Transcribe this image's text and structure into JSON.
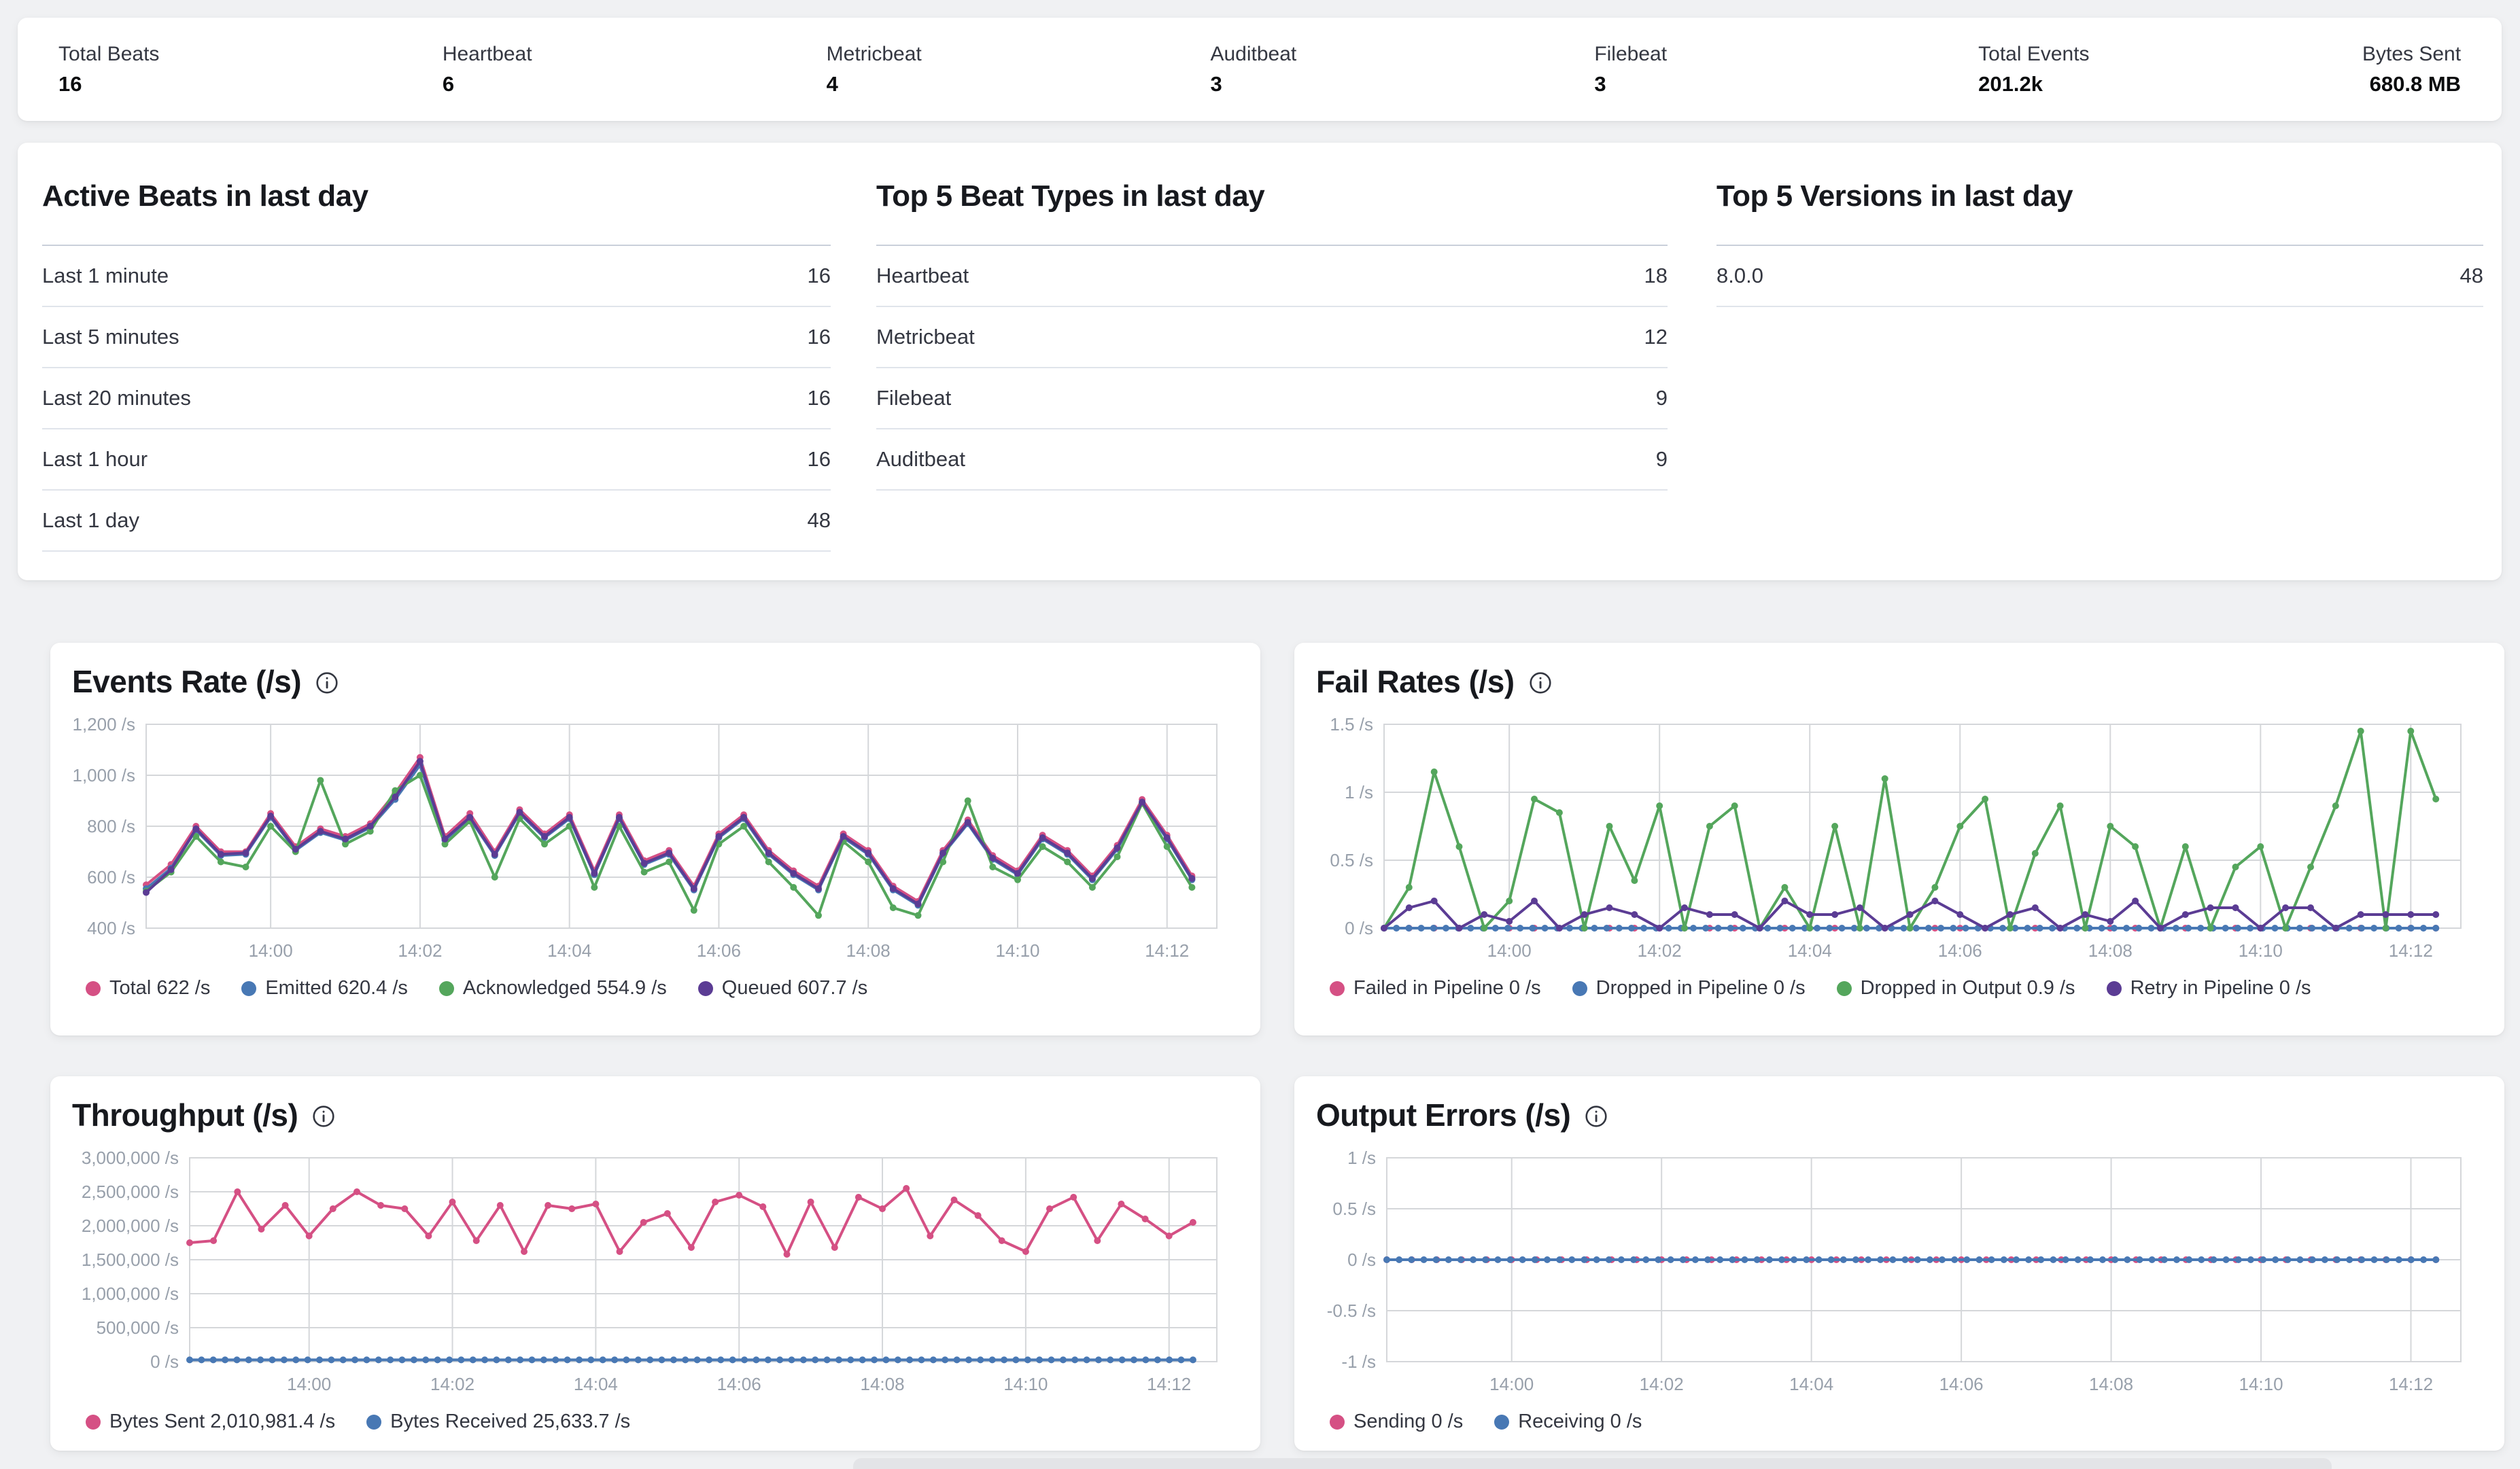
{
  "stats": [
    {
      "label": "Total Beats",
      "value": "16"
    },
    {
      "label": "Heartbeat",
      "value": "6"
    },
    {
      "label": "Metricbeat",
      "value": "4"
    },
    {
      "label": "Auditbeat",
      "value": "3"
    },
    {
      "label": "Filebeat",
      "value": "3"
    },
    {
      "label": "Total Events",
      "value": "201.2k"
    },
    {
      "label": "Bytes Sent",
      "value": "680.8 MB"
    }
  ],
  "tables": [
    {
      "title": "Active Beats in last day",
      "rows": [
        [
          "Last 1 minute",
          "16"
        ],
        [
          "Last 5 minutes",
          "16"
        ],
        [
          "Last 20 minutes",
          "16"
        ],
        [
          "Last 1 hour",
          "16"
        ],
        [
          "Last 1 day",
          "48"
        ]
      ]
    },
    {
      "title": "Top 5 Beat Types in last day",
      "rows": [
        [
          "Heartbeat",
          "18"
        ],
        [
          "Metricbeat",
          "12"
        ],
        [
          "Filebeat",
          "9"
        ],
        [
          "Auditbeat",
          "9"
        ]
      ]
    },
    {
      "title": "Top 5 Versions in last day",
      "rows": [
        [
          "8.0.0",
          "48"
        ]
      ]
    }
  ],
  "colors": {
    "pink": "#D55084",
    "blue": "#4878B4",
    "green": "#54A65C",
    "purple": "#5B3C94",
    "grid": "#D5D7DA",
    "tick_text": "#98A0AB",
    "page_bg": "#F0F1F3",
    "card_bg": "#FFFFFF"
  },
  "charts": [
    {
      "id": "events_rate",
      "title": "Events Rate (/s)",
      "type": "line",
      "ylim": [
        400,
        1200
      ],
      "yticks": [
        {
          "v": 1200,
          "label": "1,200 /s"
        },
        {
          "v": 1000,
          "label": "1,000 /s"
        },
        {
          "v": 800,
          "label": "800 /s"
        },
        {
          "v": 600,
          "label": "600 /s"
        },
        {
          "v": 400,
          "label": "400 /s"
        }
      ],
      "x_domain_s": 860,
      "xticks": [
        {
          "t": 100,
          "label": "14:00"
        },
        {
          "t": 220,
          "label": "14:02"
        },
        {
          "t": 340,
          "label": "14:04"
        },
        {
          "t": 460,
          "label": "14:06"
        },
        {
          "t": 580,
          "label": "14:08"
        },
        {
          "t": 700,
          "label": "14:10"
        },
        {
          "t": 820,
          "label": "14:12"
        }
      ],
      "series": [
        {
          "name": "Total",
          "color": "#D55084",
          "legend": "Total 622 /s",
          "values": [
            570,
            650,
            800,
            700,
            700,
            850,
            720,
            790,
            760,
            810,
            930,
            1070,
            760,
            850,
            700,
            865,
            770,
            845,
            625,
            845,
            665,
            705,
            565,
            770,
            845,
            705,
            625,
            565,
            770,
            705,
            565,
            505,
            705,
            825,
            685,
            625,
            765,
            705,
            605,
            725,
            905,
            765,
            605
          ]
        },
        {
          "name": "Emitted",
          "color": "#4878B4",
          "legend": "Emitted 620.4 /s",
          "values": [
            555,
            635,
            785,
            685,
            690,
            835,
            705,
            775,
            745,
            795,
            905,
            1040,
            745,
            830,
            685,
            850,
            755,
            830,
            610,
            830,
            650,
            690,
            550,
            755,
            830,
            690,
            610,
            550,
            755,
            690,
            550,
            490,
            690,
            810,
            670,
            610,
            750,
            690,
            590,
            710,
            890,
            750,
            590
          ]
        },
        {
          "name": "Acknowledged",
          "color": "#54A65C",
          "legend": "Acknowledged 554.9 /s",
          "values": [
            545,
            620,
            760,
            660,
            640,
            800,
            700,
            980,
            730,
            780,
            940,
            1000,
            730,
            820,
            600,
            830,
            730,
            800,
            560,
            800,
            620,
            660,
            470,
            730,
            800,
            660,
            560,
            450,
            740,
            660,
            480,
            450,
            660,
            900,
            640,
            590,
            720,
            660,
            560,
            680,
            890,
            720,
            560
          ]
        },
        {
          "name": "Queued",
          "color": "#5B3C94",
          "legend": "Queued 607.7 /s",
          "values": [
            540,
            630,
            790,
            690,
            695,
            840,
            710,
            780,
            750,
            800,
            915,
            1055,
            750,
            835,
            690,
            855,
            760,
            835,
            615,
            835,
            655,
            695,
            555,
            760,
            835,
            695,
            615,
            555,
            760,
            695,
            555,
            495,
            695,
            815,
            675,
            615,
            755,
            695,
            595,
            715,
            895,
            755,
            595
          ]
        }
      ]
    },
    {
      "id": "fail_rates",
      "title": "Fail Rates (/s)",
      "type": "line",
      "ylim": [
        0,
        1.5
      ],
      "yticks": [
        {
          "v": 1.5,
          "label": "1.5 /s"
        },
        {
          "v": 1,
          "label": "1 /s"
        },
        {
          "v": 0.5,
          "label": "0.5 /s"
        },
        {
          "v": 0,
          "label": "0 /s"
        }
      ],
      "x_domain_s": 860,
      "xticks": [
        {
          "t": 100,
          "label": "14:00"
        },
        {
          "t": 220,
          "label": "14:02"
        },
        {
          "t": 340,
          "label": "14:04"
        },
        {
          "t": 460,
          "label": "14:06"
        },
        {
          "t": 580,
          "label": "14:08"
        },
        {
          "t": 700,
          "label": "14:10"
        },
        {
          "t": 820,
          "label": "14:12"
        }
      ],
      "series": [
        {
          "name": "Failed in Pipeline",
          "color": "#D55084",
          "legend": "Failed in Pipeline 0 /s",
          "values": [
            0,
            0,
            0,
            0,
            0,
            0,
            0,
            0,
            0,
            0,
            0,
            0,
            0,
            0,
            0,
            0,
            0,
            0,
            0,
            0,
            0,
            0,
            0,
            0,
            0,
            0,
            0,
            0,
            0,
            0,
            0,
            0,
            0,
            0,
            0,
            0,
            0,
            0,
            0,
            0,
            0,
            0,
            0
          ]
        },
        {
          "name": "Dropped in Pipeline",
          "color": "#4878B4",
          "legend": "Dropped in Pipeline 0 /s",
          "values": [
            0,
            0,
            0,
            0,
            0,
            0,
            0,
            0,
            0,
            0,
            0,
            0,
            0,
            0,
            0,
            0,
            0,
            0,
            0,
            0,
            0,
            0,
            0,
            0,
            0,
            0,
            0,
            0,
            0,
            0,
            0,
            0,
            0,
            0,
            0,
            0,
            0,
            0,
            0,
            0,
            0,
            0,
            0,
            0,
            0,
            0,
            0,
            0,
            0,
            0,
            0,
            0,
            0,
            0,
            0,
            0,
            0,
            0,
            0,
            0,
            0,
            0,
            0,
            0,
            0,
            0,
            0,
            0,
            0,
            0,
            0,
            0,
            0,
            0,
            0,
            0,
            0,
            0,
            0,
            0,
            0,
            0,
            0,
            0,
            0,
            0
          ]
        },
        {
          "name": "Dropped in Output",
          "color": "#54A65C",
          "legend": "Dropped in Output 0.9 /s",
          "values": [
            0,
            0.3,
            1.15,
            0.6,
            0,
            0.2,
            0.95,
            0.85,
            0,
            0.75,
            0.35,
            0.9,
            0,
            0.75,
            0.9,
            0,
            0.3,
            0,
            0.75,
            0,
            1.1,
            0,
            0.3,
            0.75,
            0.95,
            0,
            0.55,
            0.9,
            0,
            0.75,
            0.6,
            0,
            0.6,
            0,
            0.45,
            0.6,
            0,
            0.45,
            0.9,
            1.45,
            0,
            1.45,
            0.95
          ]
        },
        {
          "name": "Retry in Pipeline",
          "color": "#5B3C94",
          "legend": "Retry in Pipeline 0 /s",
          "values": [
            0,
            0.15,
            0.2,
            0,
            0.1,
            0.05,
            0.2,
            0,
            0.1,
            0.15,
            0.1,
            0,
            0.15,
            0.1,
            0.1,
            0,
            0.2,
            0.1,
            0.1,
            0.15,
            0,
            0.1,
            0.2,
            0.1,
            0,
            0.1,
            0.15,
            0,
            0.1,
            0.05,
            0.2,
            0,
            0.1,
            0.15,
            0.15,
            0,
            0.15,
            0.15,
            0,
            0.1,
            0.1,
            0.1,
            0.1
          ]
        }
      ]
    },
    {
      "id": "throughput",
      "title": "Throughput (/s)",
      "type": "line",
      "ylim": [
        0,
        3000000
      ],
      "yticks": [
        {
          "v": 3000000,
          "label": "3,000,000 /s"
        },
        {
          "v": 2500000,
          "label": "2,500,000 /s"
        },
        {
          "v": 2000000,
          "label": "2,000,000 /s"
        },
        {
          "v": 1500000,
          "label": "1,500,000 /s"
        },
        {
          "v": 1000000,
          "label": "1,000,000 /s"
        },
        {
          "v": 500000,
          "label": "500,000 /s"
        },
        {
          "v": 0,
          "label": "0 /s"
        }
      ],
      "x_domain_s": 860,
      "xticks": [
        {
          "t": 100,
          "label": "14:00"
        },
        {
          "t": 220,
          "label": "14:02"
        },
        {
          "t": 340,
          "label": "14:04"
        },
        {
          "t": 460,
          "label": "14:06"
        },
        {
          "t": 580,
          "label": "14:08"
        },
        {
          "t": 700,
          "label": "14:10"
        },
        {
          "t": 820,
          "label": "14:12"
        }
      ],
      "series": [
        {
          "name": "Bytes Sent",
          "color": "#D55084",
          "legend": "Bytes Sent 2,010,981.4 /s",
          "values": [
            1750000,
            1780000,
            2500000,
            1950000,
            2300000,
            1850000,
            2250000,
            2500000,
            2300000,
            2250000,
            1850000,
            2350000,
            1780000,
            2300000,
            1620000,
            2300000,
            2250000,
            2320000,
            1620000,
            2050000,
            2180000,
            1680000,
            2350000,
            2450000,
            2280000,
            1580000,
            2350000,
            1680000,
            2420000,
            2250000,
            2550000,
            1850000,
            2380000,
            2150000,
            1780000,
            1620000,
            2250000,
            2420000,
            1780000,
            2320000,
            2100000,
            1850000,
            2050000
          ]
        },
        {
          "name": "Bytes Received",
          "color": "#4878B4",
          "legend": "Bytes Received 25,633.7 /s",
          "values": [
            25600,
            25600,
            25600,
            25600,
            25600,
            25600,
            25600,
            25600,
            25600,
            25600,
            25600,
            25600,
            25600,
            25600,
            25600,
            25600,
            25600,
            25600,
            25600,
            25600,
            25600,
            25600,
            25600,
            25600,
            25600,
            25600,
            25600,
            25600,
            25600,
            25600,
            25600,
            25600,
            25600,
            25600,
            25600,
            25600,
            25600,
            25600,
            25600,
            25600,
            25600,
            25600,
            25600,
            25600,
            25600,
            25600,
            25600,
            25600,
            25600,
            25600,
            25600,
            25600,
            25600,
            25600,
            25600,
            25600,
            25600,
            25600,
            25600,
            25600,
            25600,
            25600,
            25600,
            25600,
            25600,
            25600,
            25600,
            25600,
            25600,
            25600,
            25600,
            25600,
            25600,
            25600,
            25600,
            25600,
            25600,
            25600,
            25600,
            25600,
            25600,
            25600,
            25600,
            25600,
            25600,
            25600
          ]
        }
      ]
    },
    {
      "id": "output_errors",
      "title": "Output Errors (/s)",
      "type": "line",
      "ylim": [
        -1,
        1
      ],
      "yticks": [
        {
          "v": 1,
          "label": "1 /s"
        },
        {
          "v": 0.5,
          "label": "0.5 /s"
        },
        {
          "v": 0,
          "label": "0 /s"
        },
        {
          "v": -0.5,
          "label": "-0.5 /s"
        },
        {
          "v": -1,
          "label": "-1 /s"
        }
      ],
      "x_domain_s": 860,
      "xticks": [
        {
          "t": 100,
          "label": "14:00"
        },
        {
          "t": 220,
          "label": "14:02"
        },
        {
          "t": 340,
          "label": "14:04"
        },
        {
          "t": 460,
          "label": "14:06"
        },
        {
          "t": 580,
          "label": "14:08"
        },
        {
          "t": 700,
          "label": "14:10"
        },
        {
          "t": 820,
          "label": "14:12"
        }
      ],
      "series": [
        {
          "name": "Sending",
          "color": "#D55084",
          "legend": "Sending 0 /s",
          "values": [
            0,
            0,
            0,
            0,
            0,
            0,
            0,
            0,
            0,
            0,
            0,
            0,
            0,
            0,
            0,
            0,
            0,
            0,
            0,
            0,
            0,
            0,
            0,
            0,
            0,
            0,
            0,
            0,
            0,
            0,
            0,
            0,
            0,
            0,
            0,
            0,
            0,
            0,
            0,
            0,
            0,
            0,
            0
          ]
        },
        {
          "name": "Receiving",
          "color": "#4878B4",
          "legend": "Receiving 0 /s",
          "values": [
            0,
            0,
            0,
            0,
            0,
            0,
            0,
            0,
            0,
            0,
            0,
            0,
            0,
            0,
            0,
            0,
            0,
            0,
            0,
            0,
            0,
            0,
            0,
            0,
            0,
            0,
            0,
            0,
            0,
            0,
            0,
            0,
            0,
            0,
            0,
            0,
            0,
            0,
            0,
            0,
            0,
            0,
            0,
            0,
            0,
            0,
            0,
            0,
            0,
            0,
            0,
            0,
            0,
            0,
            0,
            0,
            0,
            0,
            0,
            0,
            0,
            0,
            0,
            0,
            0,
            0,
            0,
            0,
            0,
            0,
            0,
            0,
            0,
            0,
            0,
            0,
            0,
            0,
            0,
            0,
            0,
            0,
            0,
            0,
            0,
            0
          ]
        }
      ]
    }
  ]
}
